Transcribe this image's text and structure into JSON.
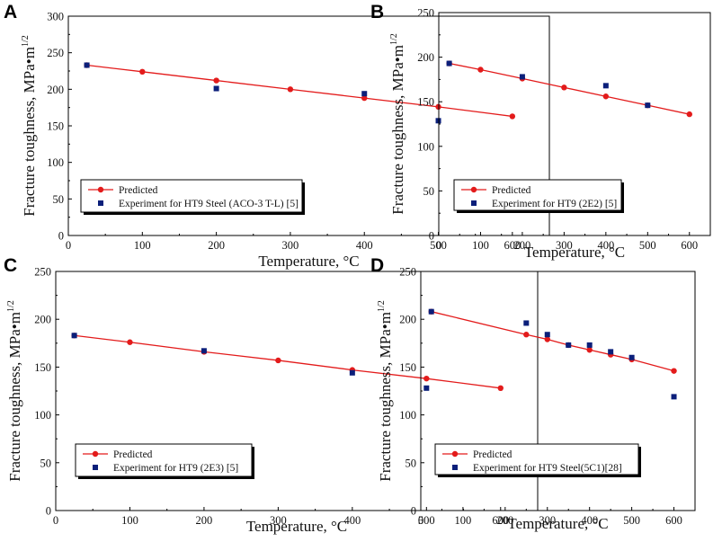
{
  "chart_data": [
    {
      "type": "line",
      "panel_label": "A",
      "xlabel": "Temperature, °C",
      "ylabel_main": "Fracture toughness, MPa•m",
      "ylabel_sup": "1/2",
      "xlim": [
        0,
        650
      ],
      "ylim": [
        0,
        300
      ],
      "xticks": [
        0,
        100,
        200,
        300,
        400,
        500,
        600
      ],
      "yticks": [
        0,
        50,
        100,
        150,
        200,
        250,
        300
      ],
      "legend_location": "lower-left",
      "series": [
        {
          "name": "Predicted",
          "kind": "line-circle",
          "color": "#e31b1b",
          "x": [
            25,
            100,
            200,
            300,
            400,
            500,
            600
          ],
          "y": [
            233,
            224,
            212,
            200,
            188,
            176,
            163
          ]
        },
        {
          "name": "Experiment for HT9 Steel (ACO-3 T-L) [5]",
          "kind": "square",
          "color": "#0b1f7a",
          "x": [
            25,
            200,
            400,
            500
          ],
          "y": [
            233,
            201,
            194,
            157
          ]
        }
      ]
    },
    {
      "type": "line",
      "panel_label": "B",
      "xlabel": "Temperature, °C",
      "ylabel_main": "Fracture toughness, MPa•m",
      "ylabel_sup": "1/2",
      "xlim": [
        0,
        650
      ],
      "ylim": [
        0,
        250
      ],
      "xticks": [
        0,
        100,
        200,
        300,
        400,
        500,
        600
      ],
      "yticks": [
        0,
        50,
        100,
        150,
        200,
        250
      ],
      "legend_location": "lower-left",
      "series": [
        {
          "name": "Predicted",
          "kind": "line-circle",
          "color": "#e31b1b",
          "x": [
            25,
            100,
            200,
            300,
            400,
            500,
            600
          ],
          "y": [
            193,
            186,
            176,
            166,
            156,
            146,
            136
          ]
        },
        {
          "name": "Experiment for HT9 (2E2) [5]",
          "kind": "square",
          "color": "#0b1f7a",
          "x": [
            25,
            200,
            400,
            500
          ],
          "y": [
            193,
            178,
            168,
            146
          ]
        }
      ]
    },
    {
      "type": "line",
      "panel_label": "C",
      "xlabel": "Temperature, °C",
      "ylabel_main": "Fracture toughness, MPa•m",
      "ylabel_sup": "1/2",
      "xlim": [
        0,
        650
      ],
      "ylim": [
        0,
        250
      ],
      "xticks": [
        0,
        100,
        200,
        300,
        400,
        500,
        600
      ],
      "yticks": [
        0,
        50,
        100,
        150,
        200,
        250
      ],
      "legend_location": "lower-left",
      "series": [
        {
          "name": "Predicted",
          "kind": "line-circle",
          "color": "#e31b1b",
          "x": [
            25,
            100,
            200,
            300,
            400,
            500,
            600
          ],
          "y": [
            183,
            176,
            166,
            157,
            147,
            138,
            128
          ]
        },
        {
          "name": "Experiment for HT9 (2E3) [5]",
          "kind": "square",
          "color": "#0b1f7a",
          "x": [
            25,
            200,
            400,
            500
          ],
          "y": [
            183,
            167,
            144,
            128
          ]
        }
      ]
    },
    {
      "type": "line",
      "panel_label": "D",
      "xlabel": "Temperature, °C",
      "ylabel_main": "Fracture toughness, MPa•m",
      "ylabel_sup": "1/2",
      "xlim": [
        0,
        650
      ],
      "ylim": [
        0,
        250
      ],
      "xticks": [
        0,
        100,
        200,
        300,
        400,
        500,
        600
      ],
      "yticks": [
        0,
        50,
        100,
        150,
        200,
        250
      ],
      "legend_location": "lower-left",
      "series": [
        {
          "name": "Predicted",
          "kind": "line-circle",
          "color": "#e31b1b",
          "x": [
            25,
            250,
            300,
            350,
            400,
            450,
            500,
            600
          ],
          "y": [
            208,
            184,
            179,
            173,
            168,
            163,
            158,
            146
          ]
        },
        {
          "name": "Experiment for HT9 Steel(5C1)[28]",
          "kind": "square",
          "color": "#0b1f7a",
          "x": [
            25,
            250,
            300,
            350,
            400,
            450,
            500,
            600
          ],
          "y": [
            208,
            196,
            184,
            173,
            173,
            166,
            160,
            119
          ]
        }
      ]
    }
  ]
}
